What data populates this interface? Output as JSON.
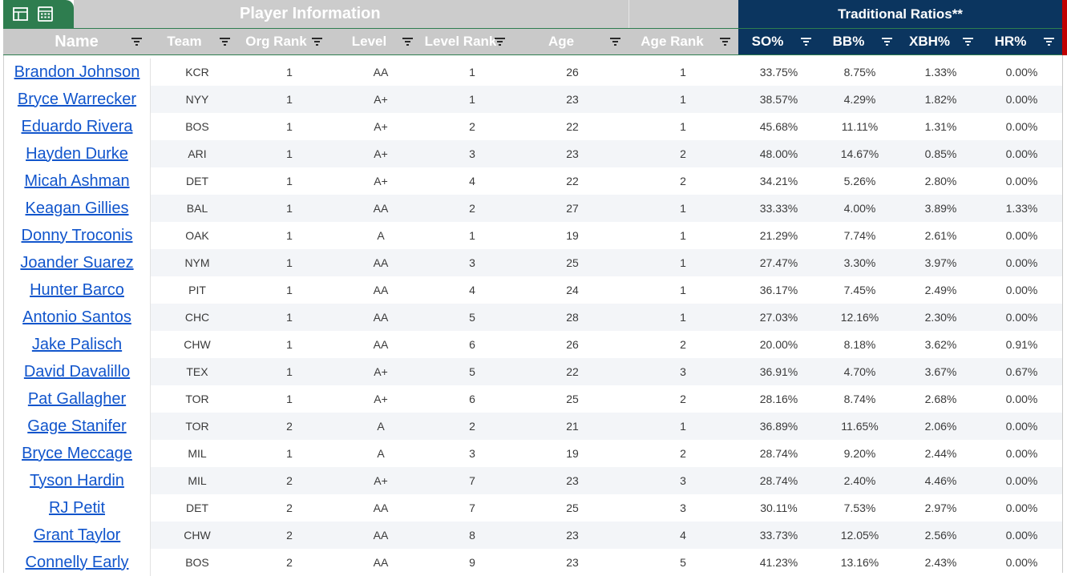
{
  "header": {
    "group_player_info": "Player Information",
    "group_traditional_ratios": "Traditional Ratios**",
    "icons": [
      "table-icon",
      "calculator-icon"
    ]
  },
  "colors": {
    "accent_green": "#2e7d4f",
    "header_grey": "#cccccc",
    "header_navy": "#0b355f",
    "link_blue": "#1155cc",
    "edge_red": "#c00000"
  },
  "columns": [
    "Name",
    "Team",
    "Org Rank",
    "Level",
    "Level Rank",
    "Age",
    "Age Rank",
    "SO%",
    "BB%",
    "XBH%",
    "HR%"
  ],
  "rows": [
    {
      "name": "Brandon Johnson",
      "team": "KCR",
      "org_rank": "1",
      "level": "AA",
      "level_rank": "1",
      "age": "26",
      "age_rank": "1",
      "so": "33.75%",
      "bb": "8.75%",
      "xbh": "1.33%",
      "hr": "0.00%"
    },
    {
      "name": "Bryce Warrecker",
      "team": "NYY",
      "org_rank": "1",
      "level": "A+",
      "level_rank": "1",
      "age": "23",
      "age_rank": "1",
      "so": "38.57%",
      "bb": "4.29%",
      "xbh": "1.82%",
      "hr": "0.00%"
    },
    {
      "name": "Eduardo Rivera",
      "team": "BOS",
      "org_rank": "1",
      "level": "A+",
      "level_rank": "2",
      "age": "22",
      "age_rank": "1",
      "so": "45.68%",
      "bb": "11.11%",
      "xbh": "1.31%",
      "hr": "0.00%"
    },
    {
      "name": "Hayden Durke",
      "team": "ARI",
      "org_rank": "1",
      "level": "A+",
      "level_rank": "3",
      "age": "23",
      "age_rank": "2",
      "so": "48.00%",
      "bb": "14.67%",
      "xbh": "0.85%",
      "hr": "0.00%"
    },
    {
      "name": "Micah Ashman",
      "team": "DET",
      "org_rank": "1",
      "level": "A+",
      "level_rank": "4",
      "age": "22",
      "age_rank": "2",
      "so": "34.21%",
      "bb": "5.26%",
      "xbh": "2.80%",
      "hr": "0.00%"
    },
    {
      "name": "Keagan Gillies",
      "team": "BAL",
      "org_rank": "1",
      "level": "AA",
      "level_rank": "2",
      "age": "27",
      "age_rank": "1",
      "so": "33.33%",
      "bb": "4.00%",
      "xbh": "3.89%",
      "hr": "1.33%"
    },
    {
      "name": "Donny Troconis",
      "team": "OAK",
      "org_rank": "1",
      "level": "A",
      "level_rank": "1",
      "age": "19",
      "age_rank": "1",
      "so": "21.29%",
      "bb": "7.74%",
      "xbh": "2.61%",
      "hr": "0.00%"
    },
    {
      "name": "Joander Suarez",
      "team": "NYM",
      "org_rank": "1",
      "level": "AA",
      "level_rank": "3",
      "age": "25",
      "age_rank": "1",
      "so": "27.47%",
      "bb": "3.30%",
      "xbh": "3.97%",
      "hr": "0.00%"
    },
    {
      "name": "Hunter Barco",
      "team": "PIT",
      "org_rank": "1",
      "level": "AA",
      "level_rank": "4",
      "age": "24",
      "age_rank": "1",
      "so": "36.17%",
      "bb": "7.45%",
      "xbh": "2.49%",
      "hr": "0.00%"
    },
    {
      "name": "Antonio Santos",
      "team": "CHC",
      "org_rank": "1",
      "level": "AA",
      "level_rank": "5",
      "age": "28",
      "age_rank": "1",
      "so": "27.03%",
      "bb": "12.16%",
      "xbh": "2.30%",
      "hr": "0.00%"
    },
    {
      "name": "Jake Palisch",
      "team": "CHW",
      "org_rank": "1",
      "level": "AA",
      "level_rank": "6",
      "age": "26",
      "age_rank": "2",
      "so": "20.00%",
      "bb": "8.18%",
      "xbh": "3.62%",
      "hr": "0.91%"
    },
    {
      "name": "David Davalillo",
      "team": "TEX",
      "org_rank": "1",
      "level": "A+",
      "level_rank": "5",
      "age": "22",
      "age_rank": "3",
      "so": "36.91%",
      "bb": "4.70%",
      "xbh": "3.67%",
      "hr": "0.67%"
    },
    {
      "name": "Pat Gallagher",
      "team": "TOR",
      "org_rank": "1",
      "level": "A+",
      "level_rank": "6",
      "age": "25",
      "age_rank": "2",
      "so": "28.16%",
      "bb": "8.74%",
      "xbh": "2.68%",
      "hr": "0.00%"
    },
    {
      "name": "Gage Stanifer",
      "team": "TOR",
      "org_rank": "2",
      "level": "A",
      "level_rank": "2",
      "age": "21",
      "age_rank": "1",
      "so": "36.89%",
      "bb": "11.65%",
      "xbh": "2.06%",
      "hr": "0.00%"
    },
    {
      "name": "Bryce Meccage",
      "team": "MIL",
      "org_rank": "1",
      "level": "A",
      "level_rank": "3",
      "age": "19",
      "age_rank": "2",
      "so": "28.74%",
      "bb": "9.20%",
      "xbh": "2.44%",
      "hr": "0.00%"
    },
    {
      "name": "Tyson Hardin",
      "team": "MIL",
      "org_rank": "2",
      "level": "A+",
      "level_rank": "7",
      "age": "23",
      "age_rank": "3",
      "so": "28.74%",
      "bb": "2.40%",
      "xbh": "4.46%",
      "hr": "0.00%"
    },
    {
      "name": "RJ Petit",
      "team": "DET",
      "org_rank": "2",
      "level": "AA",
      "level_rank": "7",
      "age": "25",
      "age_rank": "3",
      "so": "30.11%",
      "bb": "7.53%",
      "xbh": "2.97%",
      "hr": "0.00%"
    },
    {
      "name": "Grant Taylor",
      "team": "CHW",
      "org_rank": "2",
      "level": "AA",
      "level_rank": "8",
      "age": "23",
      "age_rank": "4",
      "so": "33.73%",
      "bb": "12.05%",
      "xbh": "2.56%",
      "hr": "0.00%"
    },
    {
      "name": "Connelly Early",
      "team": "BOS",
      "org_rank": "2",
      "level": "AA",
      "level_rank": "9",
      "age": "23",
      "age_rank": "5",
      "so": "41.23%",
      "bb": "13.16%",
      "xbh": "2.43%",
      "hr": "0.00%"
    }
  ]
}
